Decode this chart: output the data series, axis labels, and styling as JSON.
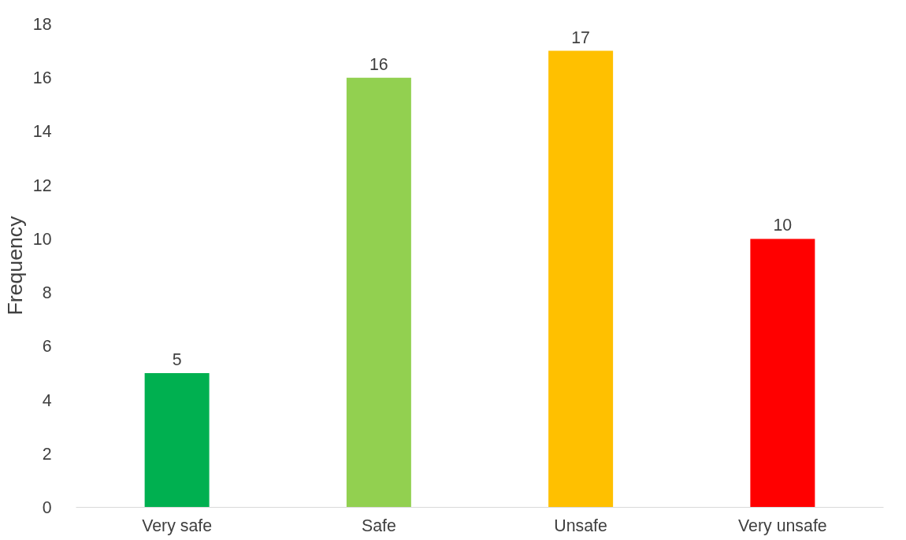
{
  "chart_data": {
    "type": "bar",
    "ylabel": "Frequency",
    "categories": [
      "Very safe",
      "Safe",
      "Unsafe",
      "Very unsafe"
    ],
    "values": [
      5,
      16,
      17,
      10
    ],
    "colors": [
      "#00b050",
      "#92d050",
      "#ffc000",
      "#ff0000"
    ],
    "ylim": [
      0,
      18
    ],
    "yticks": [
      0,
      2,
      4,
      6,
      8,
      10,
      12,
      14,
      16,
      18
    ],
    "grid": false,
    "data_labels": true
  }
}
